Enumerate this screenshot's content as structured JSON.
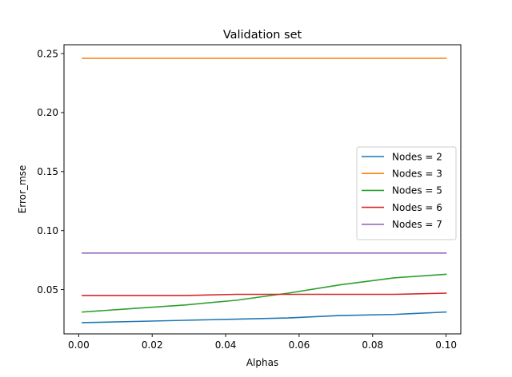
{
  "chart_data": {
    "type": "line",
    "title": "Validation set",
    "xlabel": "Alphas",
    "ylabel": "Error_mse",
    "xlim": [
      -0.004,
      0.104
    ],
    "ylim": [
      0.0125,
      0.2575
    ],
    "xticks": [
      0.0,
      0.02,
      0.04,
      0.06,
      0.08,
      0.1
    ],
    "xtick_labels": [
      "0.00",
      "0.02",
      "0.04",
      "0.06",
      "0.08",
      "0.10"
    ],
    "yticks": [
      0.05,
      0.1,
      0.15,
      0.2,
      0.25
    ],
    "ytick_labels": [
      "0.05",
      "0.10",
      "0.15",
      "0.20",
      "0.25"
    ],
    "grid": false,
    "legend_position": "center-right",
    "x": [
      0.001,
      0.015,
      0.029,
      0.043,
      0.057,
      0.071,
      0.086,
      0.1
    ],
    "series": [
      {
        "name": "Nodes = 2",
        "color": "#1f77b4",
        "values": [
          0.022,
          0.023,
          0.024,
          0.025,
          0.026,
          0.028,
          0.029,
          0.031
        ]
      },
      {
        "name": "Nodes = 3",
        "color": "#ff7f0e",
        "values": [
          0.246,
          0.246,
          0.246,
          0.246,
          0.246,
          0.246,
          0.246,
          0.246
        ]
      },
      {
        "name": "Nodes = 5",
        "color": "#2ca02c",
        "values": [
          0.031,
          0.034,
          0.037,
          0.041,
          0.047,
          0.054,
          0.06,
          0.063
        ]
      },
      {
        "name": "Nodes = 6",
        "color": "#d62728",
        "values": [
          0.045,
          0.045,
          0.045,
          0.046,
          0.046,
          0.046,
          0.046,
          0.047
        ]
      },
      {
        "name": "Nodes = 7",
        "color": "#9467bd",
        "values": [
          0.081,
          0.081,
          0.081,
          0.081,
          0.081,
          0.081,
          0.081,
          0.081
        ]
      }
    ]
  }
}
